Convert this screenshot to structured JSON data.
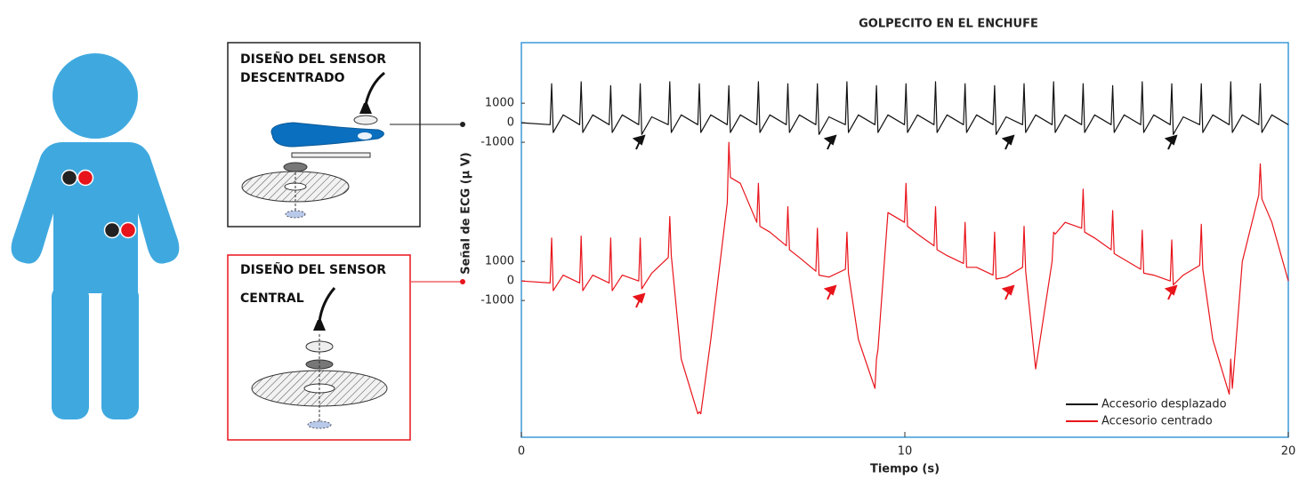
{
  "diagram": {
    "panels": [
      {
        "title_lines": [
          "DISEÑO DEL SENSOR",
          "DESCENTRADO"
        ]
      },
      {
        "title_lines": [
          "DISEÑO DEL SENSOR",
          "CENTRAL"
        ]
      }
    ]
  },
  "chart_data": {
    "type": "line",
    "title": "GOLPECITO EN EL ENCHUFE",
    "xlabel": "Tiempo (s)",
    "ylabel": "Señal de ECG (μ V)",
    "xlim": [
      0,
      20
    ],
    "xticks": [
      0,
      10,
      20
    ],
    "ylim": [
      -16100,
      4100
    ],
    "yticks": [
      1000,
      0,
      -1000
    ],
    "y2lim": [
      -8000,
      12200
    ],
    "y2ticks": [
      1000,
      0,
      -1000
    ],
    "legend": "lower right",
    "x": [
      0,
      0.75,
      0.79,
      0.83,
      1.09,
      1.52,
      1.56,
      1.6,
      1.86,
      2.29,
      2.33,
      2.37,
      2.63,
      3.06,
      3.1,
      3.14,
      3.4,
      3.83,
      3.87,
      3.91,
      4.17,
      4.6,
      4.64,
      4.68,
      4.94,
      5.37,
      5.41,
      5.45,
      5.71,
      6.14,
      6.18,
      6.22,
      6.48,
      6.91,
      6.95,
      6.99,
      7.25,
      7.68,
      7.72,
      7.76,
      8.02,
      8.45,
      8.49,
      8.53,
      8.79,
      9.22,
      9.26,
      9.3,
      9.56,
      9.99,
      10.03,
      10.07,
      10.33,
      10.76,
      10.8,
      10.84,
      11.1,
      11.53,
      11.57,
      11.61,
      11.87,
      12.3,
      12.34,
      12.38,
      12.64,
      13.07,
      13.11,
      13.15,
      13.41,
      13.84,
      13.88,
      13.92,
      14.18,
      14.61,
      14.65,
      14.69,
      14.95,
      15.38,
      15.42,
      15.46,
      15.72,
      16.15,
      16.19,
      16.23,
      16.49,
      16.92,
      16.96,
      17.0,
      17.26,
      17.69,
      17.73,
      17.77,
      18.03,
      18.46,
      18.5,
      18.54,
      18.8,
      19.23,
      19.27,
      19.31,
      19.57,
      20
    ],
    "series": [
      {
        "name": "Accesorio desplazado",
        "color": "#111111",
        "values": [
          0,
          -100,
          2000,
          -500,
          400,
          -100,
          2100,
          -500,
          400,
          -100,
          1900,
          -500,
          400,
          -100,
          2000,
          -600,
          300,
          -100,
          2100,
          -500,
          400,
          -100,
          2000,
          -500,
          400,
          -100,
          1900,
          -500,
          400,
          -100,
          2100,
          -500,
          400,
          -100,
          2000,
          -500,
          400,
          -100,
          2000,
          -600,
          300,
          -100,
          2100,
          -500,
          400,
          -100,
          1900,
          -500,
          400,
          -100,
          2000,
          -500,
          400,
          -100,
          2100,
          -500,
          400,
          -100,
          2000,
          -500,
          400,
          -100,
          1900,
          -600,
          300,
          -100,
          2000,
          -500,
          400,
          -100,
          2100,
          -500,
          400,
          -100,
          2000,
          -500,
          400,
          -100,
          1900,
          -500,
          400,
          -100,
          2100,
          -500,
          400,
          -100,
          2000,
          -600,
          300,
          -100,
          2000,
          -500,
          400,
          -100,
          2100,
          -500,
          400,
          -100,
          2000,
          -500,
          400,
          -100
        ]
      },
      {
        "name": "Accesorio centrado",
        "color": "#e8141b",
        "axis": "y2",
        "values": [
          0,
          -100,
          2200,
          -500,
          300,
          -100,
          2300,
          -500,
          300,
          -100,
          2200,
          -500,
          300,
          0,
          2200,
          -400,
          400,
          1200,
          3300,
          1300,
          -4000,
          -6800,
          -6700,
          -6800,
          -3000,
          4000,
          7100,
          5300,
          5000,
          3000,
          5000,
          2800,
          2500,
          1800,
          3800,
          1600,
          1200,
          500,
          2700,
          300,
          200,
          600,
          2500,
          400,
          -3000,
          -5500,
          -4000,
          -3500,
          3500,
          3000,
          5000,
          2800,
          2400,
          1800,
          3800,
          1600,
          1300,
          900,
          3000,
          700,
          700,
          300,
          2500,
          100,
          200,
          700,
          2800,
          500,
          -4500,
          1000,
          2500,
          2400,
          3000,
          2700,
          4700,
          2500,
          2200,
          1600,
          3600,
          1400,
          1100,
          600,
          2600,
          400,
          300,
          0,
          2100,
          -200,
          300,
          800,
          2900,
          600,
          -3000,
          -5800,
          -4000,
          -5500,
          1000,
          4400,
          6000,
          4200,
          3000,
          0
        ]
      }
    ]
  }
}
